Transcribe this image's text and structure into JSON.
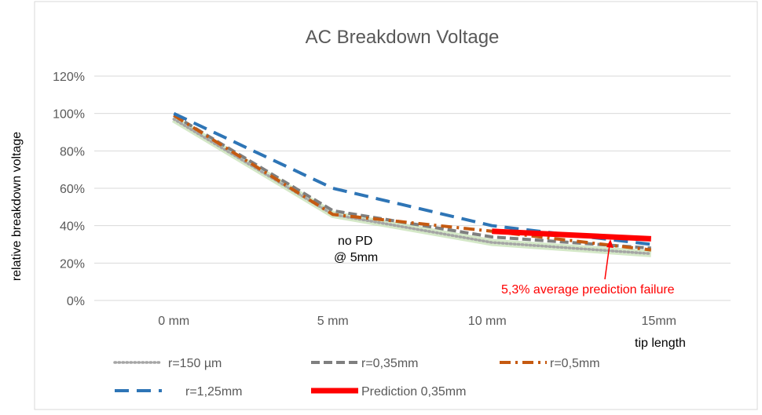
{
  "chart_data": {
    "type": "line",
    "title": "AC Breakdown Voltage",
    "ylabel": "relative breakdown voltage",
    "xlabel": "tip length",
    "categories": [
      "0 mm",
      "5 mm",
      "10 mm",
      "15mm"
    ],
    "x": [
      0,
      5,
      10,
      15
    ],
    "ylim": [
      0,
      120
    ],
    "yticks": [
      0,
      20,
      40,
      60,
      80,
      100,
      120
    ],
    "ytick_labels": [
      "0%",
      "20%",
      "40%",
      "60%",
      "80%",
      "100%",
      "120%"
    ],
    "grid": true,
    "legend_position": "bottom",
    "series": [
      {
        "name": "r=150 µm",
        "color": "#a5a5a5",
        "style": "dotted",
        "glow": true,
        "x": [
          0,
          5,
          10,
          15
        ],
        "values": [
          97,
          46,
          31,
          25
        ]
      },
      {
        "name": "r=0,35mm",
        "color": "#7f7f7f",
        "style": "dashed",
        "x": [
          0,
          5,
          10,
          15
        ],
        "values": [
          99,
          48,
          34,
          28
        ]
      },
      {
        "name": "r=0,5mm",
        "color": "#c55a11",
        "style": "dash-dot",
        "x": [
          0,
          5,
          10,
          15
        ],
        "values": [
          99,
          46,
          37,
          27
        ]
      },
      {
        "name": "r=1,25mm",
        "color": "#2e75b6",
        "style": "long-dash",
        "x": [
          0,
          5,
          10,
          15
        ],
        "values": [
          100,
          60,
          40,
          30
        ]
      },
      {
        "name": "Prediction  0,35mm",
        "color": "#ff0000",
        "style": "solid-thick",
        "x": [
          10,
          15
        ],
        "values": [
          37,
          33
        ]
      }
    ],
    "annotations": {
      "no_pd_line1": "no PD",
      "no_pd_line2": "@ 5mm",
      "failure_text": "5,3% average prediction failure",
      "failure_color": "#ff0000"
    }
  }
}
